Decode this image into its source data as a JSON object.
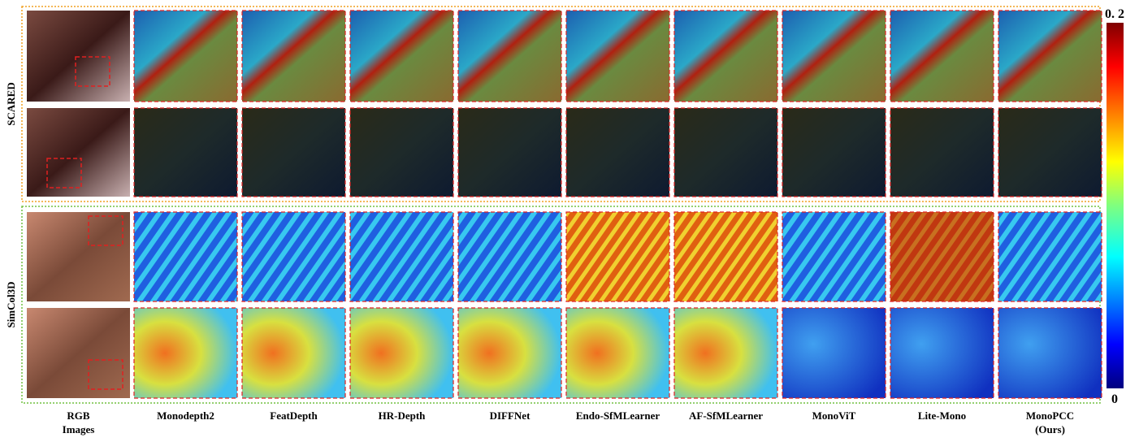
{
  "figure": {
    "row_groups": [
      "SCARED",
      "SimCol3D"
    ],
    "columns": [
      [
        "RGB",
        "Images"
      ],
      [
        "Monodepth2"
      ],
      [
        "FeatDepth"
      ],
      [
        "HR-Depth"
      ],
      [
        "DIFFNet"
      ],
      [
        "Endo-SfMLearner"
      ],
      [
        "AF-SfMLearner"
      ],
      [
        "MonoViT"
      ],
      [
        "Lite-Mono"
      ],
      [
        "MonoPCC",
        "(Ours)"
      ]
    ],
    "colorbar": {
      "max_label": "0. 2",
      "min_label": "0"
    }
  }
}
